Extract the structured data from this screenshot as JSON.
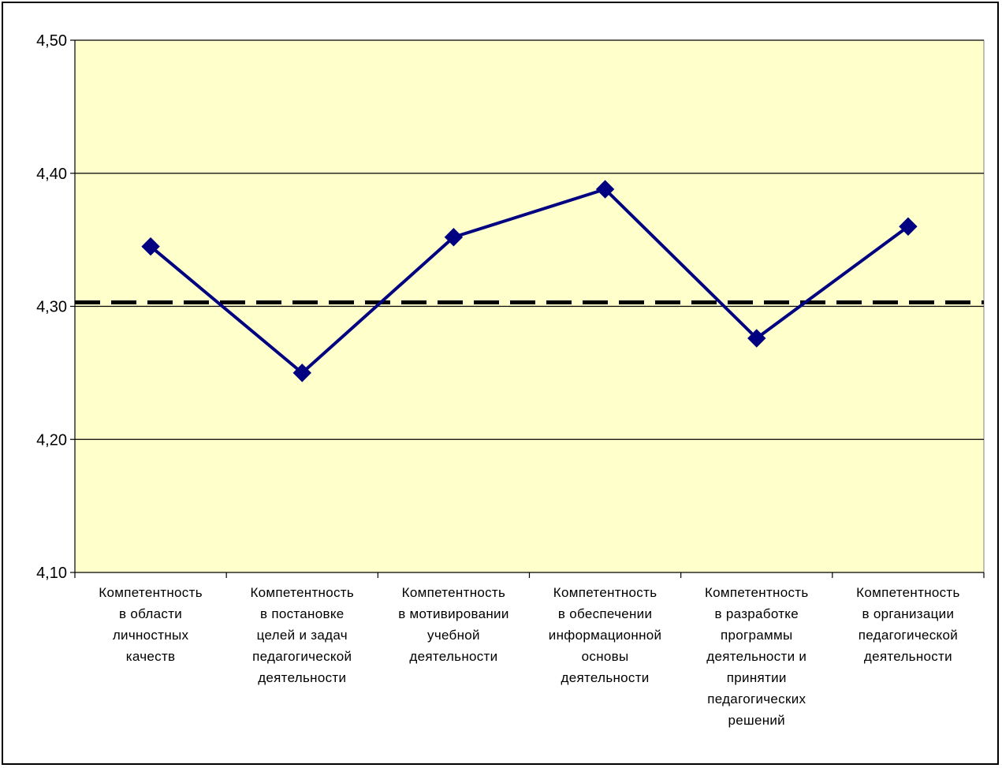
{
  "chart_data": {
    "type": "line",
    "title": "",
    "xlabel": "",
    "ylabel": "",
    "ylim": [
      4.1,
      4.5
    ],
    "yticks": [
      "4,10",
      "4,20",
      "4,30",
      "4,40",
      "4,50"
    ],
    "ytick_values": [
      4.1,
      4.2,
      4.3,
      4.4,
      4.5
    ],
    "gridlines": [
      4.2,
      4.3,
      4.4,
      4.5
    ],
    "categories": [
      [
        "Компетентность",
        "в области",
        "личностных",
        "качеств"
      ],
      [
        "Компетентность",
        "в постановке",
        "целей и задач",
        "педагогической",
        "деятельности"
      ],
      [
        "Компетентность",
        "в мотивировании",
        "учебной",
        "деятельности"
      ],
      [
        "Компетентность",
        "в обеспечении",
        "информационной",
        "основы",
        "деятельности"
      ],
      [
        "Компетентность",
        "в разработке",
        "программы",
        "деятельности и",
        "принятии",
        "педагогических",
        "решений"
      ],
      [
        "Компетентность",
        "в организации",
        "педагогической",
        "деятельности"
      ]
    ],
    "series": [
      {
        "values": [
          4.345,
          4.25,
          4.352,
          4.388,
          4.276,
          4.36
        ],
        "color": "#000080",
        "marker": "diamond"
      }
    ],
    "reference_line": {
      "value": 4.303,
      "style": "dashed",
      "color": "#000000"
    },
    "plot_background": "#ffffcc",
    "grid": true,
    "legend": "none"
  }
}
